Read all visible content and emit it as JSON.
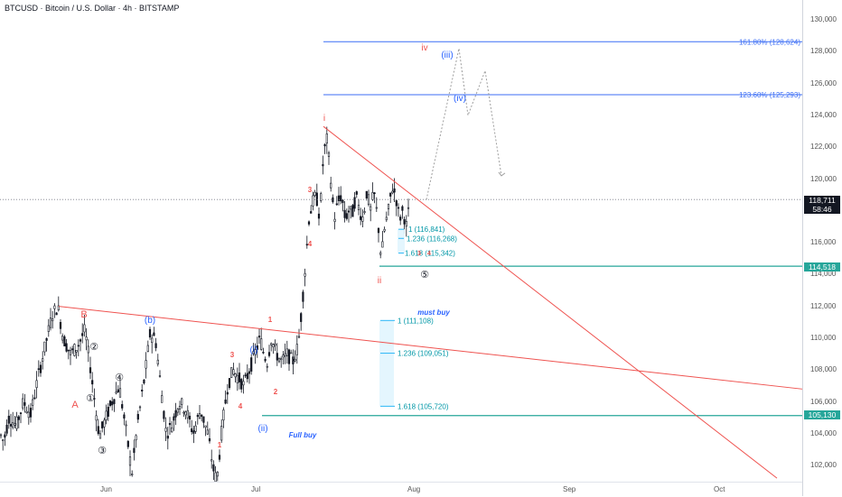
{
  "header": {
    "title": "BTCUSD · Bitcoin / U.S. Dollar · 4h · BITSTAMP"
  },
  "colors": {
    "candle": "#131722",
    "red": "#ef5350",
    "blue": "#2962ff",
    "fib_blue": "#3c6ef5",
    "teal": "#26a69a",
    "cyan": "#29b6f6",
    "box": "#e1f5fe",
    "dark_badge": "#131722",
    "teal_badge": "#26a69a"
  },
  "price_axis": {
    "ticks": [
      "130,000",
      "128,000",
      "126,000",
      "124,000",
      "122,000",
      "120,000",
      "118,000",
      "116,000",
      "114,000",
      "112,000",
      "110,000",
      "108,000",
      "106,000",
      "104,000",
      "102,000"
    ],
    "current_price": "118,711",
    "countdown": "58:46",
    "support_price": "114,518",
    "full_buy_price": "105,130"
  },
  "time_axis": {
    "labels": [
      "Jun",
      "Jul",
      "Aug",
      "Sep",
      "Oct"
    ]
  },
  "chart_data": {
    "type": "candlestick",
    "title": "BTCUSD · Bitcoin / U.S. Dollar · 4h · BITSTAMP",
    "interval": "4h",
    "ylim": [
      101000,
      131000
    ],
    "price_path": [
      [
        0,
        104000
      ],
      [
        4,
        103500
      ],
      [
        10,
        105000
      ],
      [
        18,
        104500
      ],
      [
        26,
        106000
      ],
      [
        34,
        105200
      ],
      [
        42,
        107500
      ],
      [
        50,
        109500
      ],
      [
        58,
        111500
      ],
      [
        64,
        112000
      ],
      [
        70,
        110000
      ],
      [
        78,
        109000
      ],
      [
        86,
        109500
      ],
      [
        94,
        110500
      ],
      [
        100,
        108200
      ],
      [
        106,
        105500
      ],
      [
        110,
        103800
      ],
      [
        116,
        104800
      ],
      [
        124,
        106000
      ],
      [
        132,
        107000
      ],
      [
        140,
        104000
      ],
      [
        146,
        101500
      ],
      [
        152,
        104500
      ],
      [
        160,
        107500
      ],
      [
        166,
        110200
      ],
      [
        172,
        110000
      ],
      [
        178,
        107000
      ],
      [
        184,
        104000
      ],
      [
        190,
        104500
      ],
      [
        198,
        106000
      ],
      [
        206,
        105500
      ],
      [
        214,
        104000
      ],
      [
        222,
        105500
      ],
      [
        230,
        104000
      ],
      [
        236,
        101800
      ],
      [
        240,
        101000
      ],
      [
        246,
        104500
      ],
      [
        252,
        107000
      ],
      [
        258,
        108000
      ],
      [
        264,
        107500
      ],
      [
        270,
        107000
      ],
      [
        276,
        108000
      ],
      [
        282,
        109000
      ],
      [
        288,
        110000
      ],
      [
        292,
        109000
      ],
      [
        296,
        108500
      ],
      [
        300,
        110000
      ],
      [
        306,
        109000
      ],
      [
        312,
        108500
      ],
      [
        318,
        109000
      ],
      [
        324,
        108500
      ],
      [
        330,
        109500
      ],
      [
        334,
        111800
      ],
      [
        338,
        114500
      ],
      [
        342,
        117500
      ],
      [
        346,
        118500
      ],
      [
        350,
        119000
      ],
      [
        354,
        117500
      ],
      [
        358,
        121500
      ],
      [
        362,
        122500
      ],
      [
        366,
        120000
      ],
      [
        370,
        117500
      ],
      [
        374,
        118500
      ],
      [
        378,
        119000
      ],
      [
        382,
        117500
      ],
      [
        386,
        118000
      ],
      [
        390,
        117800
      ],
      [
        394,
        119000
      ],
      [
        398,
        118000
      ],
      [
        402,
        117500
      ],
      [
        406,
        119200
      ],
      [
        410,
        118000
      ],
      [
        414,
        119200
      ],
      [
        418,
        117500
      ],
      [
        422,
        115000
      ],
      [
        426,
        117000
      ],
      [
        430,
        118000
      ],
      [
        434,
        119500
      ],
      [
        438,
        119000
      ],
      [
        442,
        117500
      ],
      [
        446,
        118000
      ],
      [
        450,
        117000
      ],
      [
        454,
        118700
      ]
    ],
    "horizontal_levels": [
      {
        "price": 128624,
        "label": "161.80% (128,624)"
      },
      {
        "price": 125293,
        "label": "123.60% (125,293)"
      },
      {
        "price": 118711,
        "label": "118,711"
      },
      {
        "price": 114518,
        "label": "114,518"
      },
      {
        "price": 105130,
        "label": "105,130"
      }
    ],
    "fib_targets_upper": [
      "1 (116,841)",
      "1.236 (116,268)",
      "1.618 (115,342)"
    ],
    "fib_targets_lower": [
      "1 (111,108)",
      "1.236 (109,051)",
      "1.618 (105,720)"
    ],
    "trendlines": [
      {
        "from": [
          65,
          112000
        ],
        "to": [
          888,
          106800
        ]
      },
      {
        "from": [
          358,
          123300
        ],
        "to": [
          860,
          101200
        ]
      }
    ],
    "projection": [
      [
        472,
        118700
      ],
      [
        508,
        128200
      ],
      [
        518,
        124000
      ],
      [
        537,
        126800
      ],
      [
        555,
        120200
      ]
    ],
    "wave_labels": {
      "red": [
        "B",
        "A",
        "i",
        "ii",
        "iv",
        "1",
        "2",
        "3",
        "4",
        "1",
        "3",
        "4",
        "3",
        "4"
      ],
      "blue": [
        "(b)",
        "(i)",
        "(ii)",
        "(iii)",
        "(iv)"
      ],
      "black_circled": [
        "②",
        "①",
        "④",
        "③",
        "⑤"
      ]
    },
    "annotations": [
      "must buy",
      "Full buy"
    ]
  }
}
